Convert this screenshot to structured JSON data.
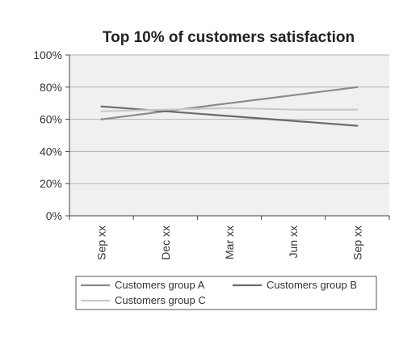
{
  "chart_data": {
    "type": "line",
    "title": "Top 10% of customers satisfaction",
    "xlabel": "",
    "ylabel": "",
    "categories": [
      "Sep xx",
      "Dec xx",
      "Mar xx",
      "Jun xx",
      "Sep xx"
    ],
    "ylim": [
      0,
      100
    ],
    "yticks": [
      0,
      20,
      40,
      60,
      80,
      100
    ],
    "ytick_labels": [
      "0%",
      "20%",
      "40%",
      "60%",
      "80%",
      "100%"
    ],
    "grid": true,
    "legend": "bottom",
    "series": [
      {
        "name": "Customers group A",
        "values": [
          60,
          65,
          70,
          75,
          80
        ],
        "color": "#8a8a8a"
      },
      {
        "name": "Customers group B",
        "values": [
          68,
          65,
          62,
          59,
          56
        ],
        "color": "#6a6a6a"
      },
      {
        "name": "Customers group C",
        "values": [
          65,
          66,
          67,
          66,
          66
        ],
        "color": "#c8c8c8"
      }
    ]
  },
  "colors": {
    "plot_background": "#f0f0f0",
    "gridline": "#b5b5b5",
    "axis": "#444444"
  }
}
